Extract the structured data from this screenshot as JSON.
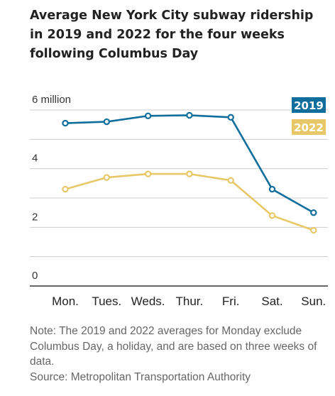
{
  "title": "Average New York City subway ridership in 2019 and 2022 for the four weeks following Columbus Day",
  "note": "Note: The 2019 and 2022 averages for Monday exclude Columbus Day, a holiday, and are based on three weeks of data.",
  "source": "Source: Metropolitan Transportation Authority",
  "colors": {
    "series2019": "#0f6e9b",
    "series2022": "#e8c768",
    "grid": "#cccccc",
    "baseline": "#333333"
  },
  "chart_data": {
    "type": "line",
    "title": "Average New York City subway ridership in 2019 and 2022 for the four weeks following Columbus Day",
    "xlabel": "",
    "ylabel": "",
    "categories": [
      "Mon.",
      "Tues.",
      "Weds.",
      "Thur.",
      "Fri.",
      "Sat.",
      "Sun."
    ],
    "ylim": [
      0,
      6
    ],
    "yticks": [
      0,
      2,
      4,
      6
    ],
    "ytick_labels": [
      "0",
      "2",
      "4",
      "6 million"
    ],
    "grid": true,
    "legend": "top-right",
    "series": [
      {
        "name": "2019",
        "color": "#0f6e9b",
        "values": [
          5.55,
          5.6,
          5.8,
          5.82,
          5.75,
          3.3,
          2.5
        ]
      },
      {
        "name": "2022",
        "color": "#e8c768",
        "values": [
          3.3,
          3.7,
          3.82,
          3.82,
          3.6,
          2.4,
          1.9
        ]
      }
    ]
  }
}
